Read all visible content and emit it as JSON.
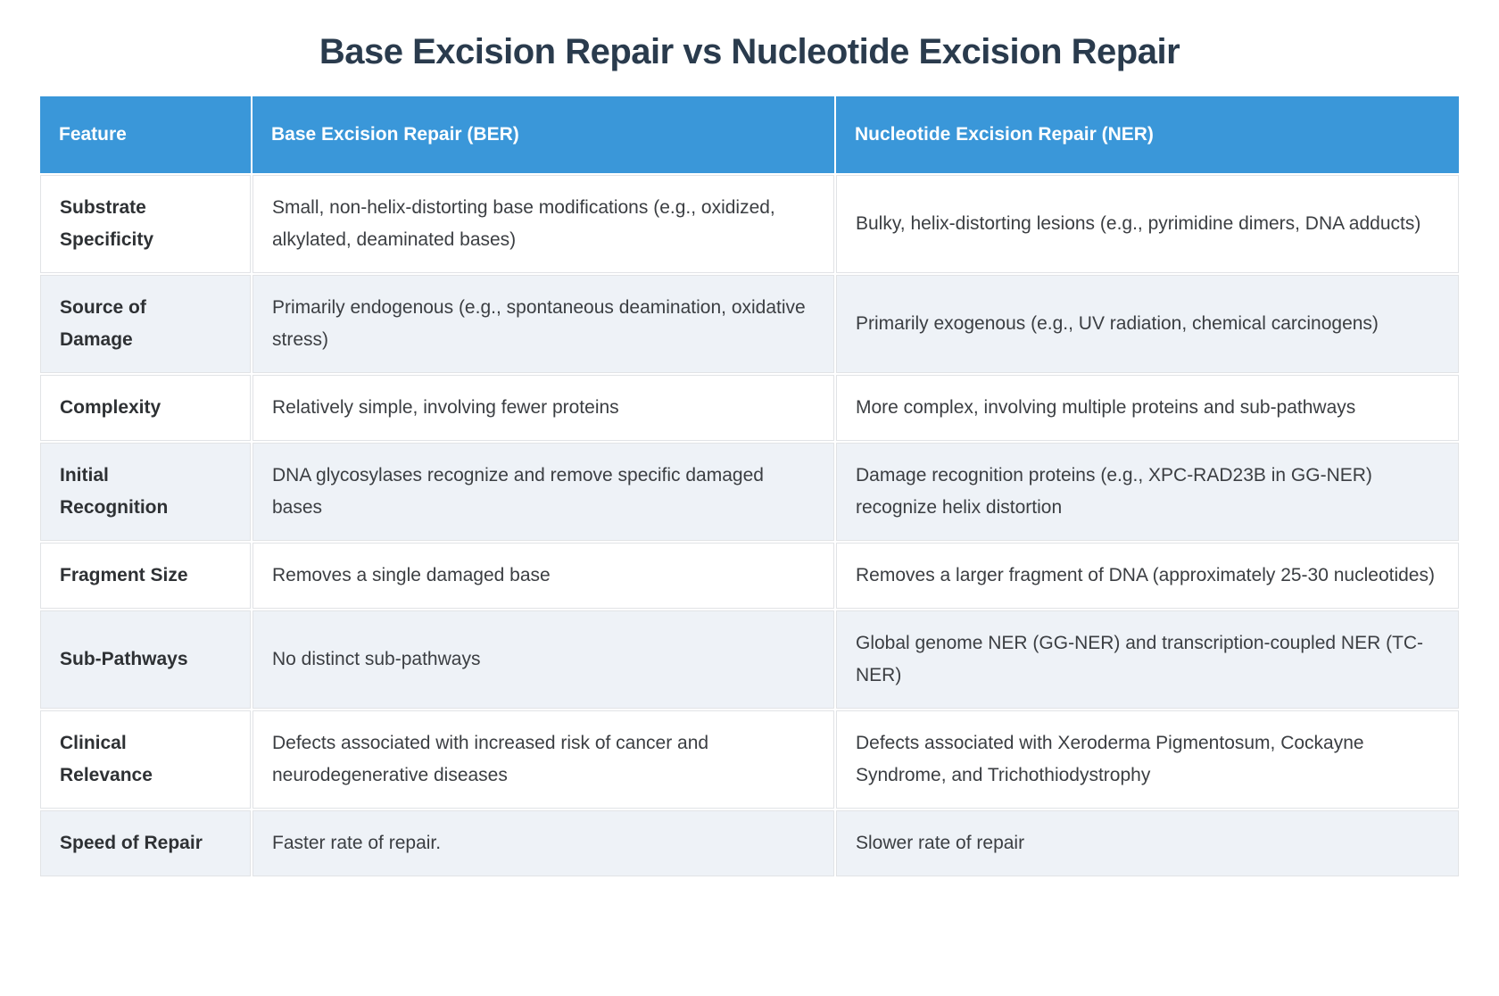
{
  "page": {
    "title": "Base Excision Repair vs Nucleotide Excision Repair"
  },
  "table": {
    "columns": {
      "feature": "Feature",
      "ber": "Base Excision Repair (BER)",
      "ner": "Nucleotide Excision Repair (NER)"
    },
    "rows": [
      {
        "feature": "Substrate Specificity",
        "ber": "Small, non-helix-distorting base modifications (e.g., oxidized, alkylated, deaminated bases)",
        "ner": "Bulky, helix-distorting lesions (e.g., pyrimidine dimers, DNA adducts)"
      },
      {
        "feature": "Source of Damage",
        "ber": "Primarily endogenous (e.g., spontaneous deamination, oxidative stress)",
        "ner": "Primarily exogenous (e.g., UV radiation, chemical carcinogens)"
      },
      {
        "feature": "Complexity",
        "ber": "Relatively simple, involving fewer proteins",
        "ner": "More complex, involving multiple proteins and sub-pathways"
      },
      {
        "feature": "Initial Recognition",
        "ber": "DNA glycosylases recognize and remove specific damaged bases",
        "ner": "Damage recognition proteins (e.g., XPC-RAD23B in GG-NER) recognize helix distortion"
      },
      {
        "feature": "Fragment Size",
        "ber": "Removes a single damaged base",
        "ner": "Removes a larger fragment of DNA (approximately 25-30 nucleotides)"
      },
      {
        "feature": "Sub-Pathways",
        "ber": "No distinct sub-pathways",
        "ner": "Global genome NER (GG-NER) and transcription-coupled NER (TC-NER)"
      },
      {
        "feature": "Clinical Relevance",
        "ber": "Defects associated with increased risk of cancer and neurodegenerative diseases",
        "ner": "Defects associated with Xeroderma Pigmentosum, Cockayne Syndrome, and Trichothiodystrophy"
      },
      {
        "feature": "Speed of Repair",
        "ber": "Faster rate of repair.",
        "ner": "Slower rate of repair"
      }
    ]
  },
  "colors": {
    "header_bg": "#3a97d9",
    "header_text": "#ffffff",
    "row_alt_bg": "#eef2f7",
    "title_text": "#2a3b4d",
    "body_text": "#3b3e42",
    "border": "#e1e3e6"
  }
}
